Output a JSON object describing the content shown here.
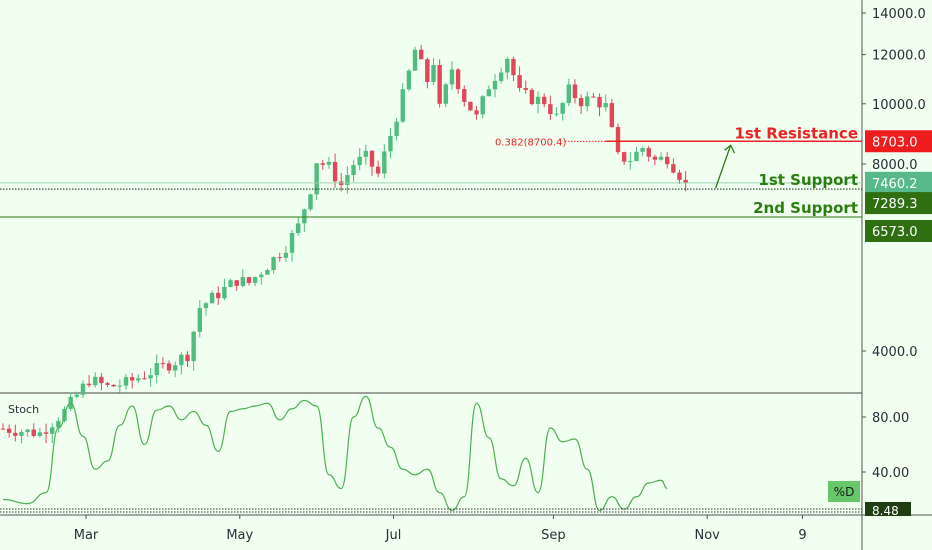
{
  "chart_data": {
    "type": "candlestick",
    "price_axis": {
      "ticks": [
        "14000.0",
        "12000.0",
        "10000.0",
        "8000.0",
        "4000.0"
      ],
      "scale": "log"
    },
    "time_axis": {
      "ticks": [
        "Mar",
        "May",
        "Jul",
        "Sep",
        "Nov",
        "9"
      ]
    },
    "colors": {
      "up": "#4fbd7e",
      "down": "#e0485a",
      "resistance": "#ee2222",
      "support": "#2a7d0f",
      "stoch": "#4caf50",
      "background": "#f0fff0"
    },
    "levels": {
      "resistance_1": {
        "label": "1st Resistance",
        "value": 8703.0,
        "price_label": "8703.0"
      },
      "support_1": {
        "label": "1st Support",
        "value": 7289.3,
        "price_label": "7289.3"
      },
      "support_2": {
        "label": "2nd Support",
        "value": 6573.0,
        "price_label": "6573.0"
      },
      "current_price": {
        "value": 7460.2,
        "price_label": "7460.2"
      }
    },
    "fib": {
      "label": "0.382(8700.4)",
      "value": 8700.4
    },
    "close_path": [
      [
        0,
        3000
      ],
      [
        6,
        2950
      ],
      [
        10,
        3200
      ],
      [
        14,
        3600
      ],
      [
        17,
        3500
      ],
      [
        20,
        3550
      ],
      [
        24,
        3700
      ],
      [
        28,
        3850
      ],
      [
        30,
        3950
      ],
      [
        32,
        4700
      ],
      [
        35,
        4950
      ],
      [
        38,
        5200
      ],
      [
        40,
        5150
      ],
      [
        43,
        5500
      ],
      [
        46,
        5900
      ],
      [
        48,
        6350
      ],
      [
        50,
        7300
      ],
      [
        51,
        8100
      ],
      [
        53,
        7900
      ],
      [
        55,
        7400
      ],
      [
        57,
        8000
      ],
      [
        59,
        8200
      ],
      [
        61,
        7700
      ],
      [
        63,
        8900
      ],
      [
        65,
        10300
      ],
      [
        67,
        12200
      ],
      [
        69,
        10900
      ],
      [
        70,
        11700
      ],
      [
        71,
        9800
      ],
      [
        73,
        11400
      ],
      [
        75,
        10200
      ],
      [
        77,
        9500
      ],
      [
        79,
        10700
      ],
      [
        81,
        11500
      ],
      [
        82,
        11900
      ],
      [
        84,
        10400
      ],
      [
        86,
        10200
      ],
      [
        88,
        10100
      ],
      [
        90,
        9500
      ],
      [
        92,
        10500
      ],
      [
        94,
        10100
      ],
      [
        96,
        10200
      ],
      [
        98,
        9900
      ],
      [
        100,
        8200
      ],
      [
        102,
        8150
      ],
      [
        104,
        8500
      ],
      [
        106,
        8100
      ],
      [
        108,
        8200
      ],
      [
        110,
        7700
      ],
      [
        111,
        7460
      ]
    ],
    "stoch": {
      "name": "Stoch",
      "d_label": "%D",
      "last_label": "8.48",
      "axis_ticks": [
        "80.00",
        "40.00"
      ],
      "values": [
        [
          0,
          20
        ],
        [
          4,
          17
        ],
        [
          7,
          25
        ],
        [
          9,
          72
        ],
        [
          11,
          90
        ],
        [
          13,
          66
        ],
        [
          15,
          42
        ],
        [
          17,
          48
        ],
        [
          19,
          74
        ],
        [
          21,
          88
        ],
        [
          23,
          60
        ],
        [
          25,
          85
        ],
        [
          27,
          88
        ],
        [
          29,
          78
        ],
        [
          31,
          84
        ],
        [
          33,
          74
        ],
        [
          35,
          55
        ],
        [
          37,
          84
        ],
        [
          39,
          86
        ],
        [
          41,
          88
        ],
        [
          43,
          90
        ],
        [
          45,
          78
        ],
        [
          47,
          86
        ],
        [
          49,
          92
        ],
        [
          51,
          88
        ],
        [
          53,
          38
        ],
        [
          55,
          28
        ],
        [
          57,
          80
        ],
        [
          59,
          95
        ],
        [
          61,
          72
        ],
        [
          63,
          58
        ],
        [
          65,
          42
        ],
        [
          67,
          38
        ],
        [
          69,
          42
        ],
        [
          71,
          25
        ],
        [
          73,
          12
        ],
        [
          75,
          22
        ],
        [
          77,
          90
        ],
        [
          79,
          65
        ],
        [
          81,
          35
        ],
        [
          83,
          30
        ],
        [
          85,
          50
        ],
        [
          87,
          25
        ],
        [
          89,
          72
        ],
        [
          91,
          62
        ],
        [
          93,
          64
        ],
        [
          95,
          42
        ],
        [
          97,
          12
        ],
        [
          99,
          22
        ],
        [
          101,
          13
        ],
        [
          103,
          22
        ],
        [
          105,
          32
        ],
        [
          107,
          34
        ],
        [
          108,
          28
        ]
      ]
    }
  }
}
